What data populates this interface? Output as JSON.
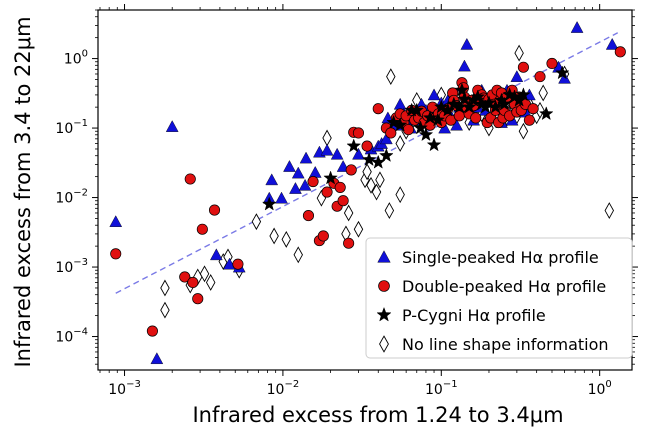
{
  "chart_data": {
    "type": "scatter",
    "xscale": "log",
    "yscale": "log",
    "xlim": [
      0.00068,
      1.6
    ],
    "ylim": [
      3.3e-05,
      5.0
    ],
    "xlabel": "Infrared excess from 1.24 to 3.4μm",
    "ylabel": "Infrared excess from 3.4 to 22μm",
    "x_ticks": [
      {
        "value": 0.001,
        "base": "10",
        "exp": "−3"
      },
      {
        "value": 0.01,
        "base": "10",
        "exp": "−2"
      },
      {
        "value": 0.1,
        "base": "10",
        "exp": "−1"
      },
      {
        "value": 1,
        "base": "10",
        "exp": "0"
      }
    ],
    "y_ticks": [
      {
        "value": 0.0001,
        "base": "10",
        "exp": "−4"
      },
      {
        "value": 0.001,
        "base": "10",
        "exp": "−3"
      },
      {
        "value": 0.01,
        "base": "10",
        "exp": "−2"
      },
      {
        "value": 0.1,
        "base": "10",
        "exp": "−1"
      },
      {
        "value": 1,
        "base": "10",
        "exp": "0"
      }
    ],
    "trend_line": {
      "x": [
        0.00088,
        1.3
      ],
      "y": [
        0.00042,
        2.35
      ],
      "color": "#7a7ae6",
      "style": "dashed"
    },
    "legend_position": "lower right",
    "series": [
      {
        "name": "Single-peaked Hα profile",
        "marker": "triangle",
        "color": "#1010d8",
        "points": [
          [
            0.00088,
            0.0045
          ],
          [
            0.0016,
            4.8e-05
          ],
          [
            0.002,
            0.105
          ],
          [
            0.0038,
            0.0015
          ],
          [
            0.0046,
            0.0011
          ],
          [
            0.0053,
            0.001
          ],
          [
            0.0082,
            0.0098
          ],
          [
            0.0085,
            0.018
          ],
          [
            0.0098,
            0.0098
          ],
          [
            0.011,
            0.028
          ],
          [
            0.012,
            0.0135
          ],
          [
            0.0125,
            0.0225
          ],
          [
            0.0138,
            0.015
          ],
          [
            0.014,
            0.037
          ],
          [
            0.016,
            0.023
          ],
          [
            0.017,
            0.045
          ],
          [
            0.019,
            0.048
          ],
          [
            0.022,
            0.042
          ],
          [
            0.024,
            0.028
          ],
          [
            0.03,
            0.042
          ],
          [
            0.036,
            0.05
          ],
          [
            0.04,
            0.055
          ],
          [
            0.042,
            0.06
          ],
          [
            0.045,
            0.07
          ],
          [
            0.046,
            0.14
          ],
          [
            0.05,
            0.12
          ],
          [
            0.052,
            0.11
          ],
          [
            0.055,
            0.22
          ],
          [
            0.058,
            0.16
          ],
          [
            0.06,
            0.13
          ],
          [
            0.064,
            0.1
          ],
          [
            0.07,
            0.13
          ],
          [
            0.075,
            0.22
          ],
          [
            0.08,
            0.18
          ],
          [
            0.085,
            0.16
          ],
          [
            0.09,
            0.3
          ],
          [
            0.095,
            0.14
          ],
          [
            0.1,
            0.23
          ],
          [
            0.105,
            0.1
          ],
          [
            0.11,
            0.25
          ],
          [
            0.115,
            0.15
          ],
          [
            0.12,
            0.28
          ],
          [
            0.125,
            0.11
          ],
          [
            0.13,
            0.2
          ],
          [
            0.135,
            0.4
          ],
          [
            0.14,
            0.78
          ],
          [
            0.145,
            1.6
          ],
          [
            0.15,
            0.25
          ],
          [
            0.16,
            0.13
          ],
          [
            0.17,
            0.2
          ],
          [
            0.18,
            0.35
          ],
          [
            0.19,
            0.18
          ],
          [
            0.2,
            0.25
          ],
          [
            0.21,
            0.15
          ],
          [
            0.22,
            0.28
          ],
          [
            0.24,
            0.12
          ],
          [
            0.25,
            0.2
          ],
          [
            0.26,
            0.35
          ],
          [
            0.28,
            0.13
          ],
          [
            0.3,
            0.55
          ],
          [
            0.32,
            0.25
          ],
          [
            0.34,
            0.17
          ],
          [
            0.36,
            0.3
          ],
          [
            0.55,
            0.75
          ],
          [
            0.6,
            0.52
          ],
          [
            0.72,
            2.8
          ],
          [
            1.2,
            1.6
          ]
        ]
      },
      {
        "name": "Double-peaked Hα profile",
        "marker": "circle",
        "color": "#e01010",
        "points": [
          [
            0.00088,
            0.00155
          ],
          [
            0.0015,
            0.00012
          ],
          [
            0.0024,
            0.00072
          ],
          [
            0.0026,
            0.0185
          ],
          [
            0.0027,
            0.0006
          ],
          [
            0.0029,
            0.00035
          ],
          [
            0.0031,
            0.0035
          ],
          [
            0.0037,
            0.0066
          ],
          [
            0.0052,
            0.0011
          ],
          [
            0.0145,
            0.0055
          ],
          [
            0.0155,
            0.017
          ],
          [
            0.017,
            0.0024
          ],
          [
            0.018,
            0.0028
          ],
          [
            0.019,
            0.012
          ],
          [
            0.021,
            0.016
          ],
          [
            0.022,
            0.0075
          ],
          [
            0.023,
            0.014
          ],
          [
            0.024,
            0.009
          ],
          [
            0.026,
            0.0022
          ],
          [
            0.027,
            0.025
          ],
          [
            0.028,
            0.087
          ],
          [
            0.03,
            0.085
          ],
          [
            0.034,
            0.055
          ],
          [
            0.04,
            0.19
          ],
          [
            0.045,
            0.1
          ],
          [
            0.048,
            0.085
          ],
          [
            0.052,
            0.14
          ],
          [
            0.055,
            0.16
          ],
          [
            0.058,
            0.12
          ],
          [
            0.06,
            0.15
          ],
          [
            0.062,
            0.095
          ],
          [
            0.065,
            0.18
          ],
          [
            0.068,
            0.13
          ],
          [
            0.072,
            0.14
          ],
          [
            0.075,
            0.175
          ],
          [
            0.078,
            0.12
          ],
          [
            0.082,
            0.15
          ],
          [
            0.085,
            0.11
          ],
          [
            0.088,
            0.2
          ],
          [
            0.092,
            0.14
          ],
          [
            0.096,
            0.16
          ],
          [
            0.1,
            0.12
          ],
          [
            0.105,
            0.15
          ],
          [
            0.11,
            0.19
          ],
          [
            0.115,
            0.13
          ],
          [
            0.118,
            0.32
          ],
          [
            0.12,
            0.25
          ],
          [
            0.125,
            0.21
          ],
          [
            0.13,
            0.15
          ],
          [
            0.135,
            0.45
          ],
          [
            0.138,
            0.38
          ],
          [
            0.14,
            0.28
          ],
          [
            0.145,
            0.2
          ],
          [
            0.15,
            0.16
          ],
          [
            0.155,
            0.25
          ],
          [
            0.16,
            0.21
          ],
          [
            0.165,
            0.14
          ],
          [
            0.17,
            0.35
          ],
          [
            0.175,
            0.25
          ],
          [
            0.18,
            0.3
          ],
          [
            0.185,
            0.27
          ],
          [
            0.19,
            0.23
          ],
          [
            0.195,
            0.12
          ],
          [
            0.2,
            0.26
          ],
          [
            0.205,
            0.14
          ],
          [
            0.21,
            0.3
          ],
          [
            0.215,
            0.22
          ],
          [
            0.22,
            0.18
          ],
          [
            0.225,
            0.35
          ],
          [
            0.23,
            0.12
          ],
          [
            0.235,
            0.25
          ],
          [
            0.24,
            0.32
          ],
          [
            0.245,
            0.14
          ],
          [
            0.25,
            0.18
          ],
          [
            0.26,
            0.28
          ],
          [
            0.27,
            0.15
          ],
          [
            0.28,
            0.35
          ],
          [
            0.29,
            0.22
          ],
          [
            0.3,
            0.17
          ],
          [
            0.31,
            0.28
          ],
          [
            0.32,
            0.18
          ],
          [
            0.33,
            0.75
          ],
          [
            0.34,
            0.22
          ],
          [
            0.36,
            0.13
          ],
          [
            0.38,
            0.19
          ],
          [
            0.42,
            0.55
          ],
          [
            1.35,
            1.25
          ],
          [
            0.5,
            0.85
          ]
        ]
      },
      {
        "name": "P-Cygni Hα profile",
        "marker": "star",
        "color": "#000000",
        "points": [
          [
            0.0082,
            0.008
          ],
          [
            0.02,
            0.019
          ],
          [
            0.028,
            0.055
          ],
          [
            0.035,
            0.035
          ],
          [
            0.04,
            0.032
          ],
          [
            0.045,
            0.04
          ],
          [
            0.05,
            0.12
          ],
          [
            0.055,
            0.11
          ],
          [
            0.065,
            0.18
          ],
          [
            0.07,
            0.18
          ],
          [
            0.074,
            0.1
          ],
          [
            0.08,
            0.08
          ],
          [
            0.085,
            0.14
          ],
          [
            0.09,
            0.057
          ],
          [
            0.095,
            0.13
          ],
          [
            0.1,
            0.2
          ],
          [
            0.11,
            0.18
          ],
          [
            0.12,
            0.22
          ],
          [
            0.13,
            0.2
          ],
          [
            0.135,
            0.35
          ],
          [
            0.14,
            0.26
          ],
          [
            0.15,
            0.2
          ],
          [
            0.16,
            0.25
          ],
          [
            0.17,
            0.28
          ],
          [
            0.18,
            0.22
          ],
          [
            0.19,
            0.2
          ],
          [
            0.2,
            0.23
          ],
          [
            0.22,
            0.2
          ],
          [
            0.24,
            0.25
          ],
          [
            0.25,
            0.22
          ],
          [
            0.27,
            0.3
          ],
          [
            0.29,
            0.28
          ],
          [
            0.31,
            0.25
          ],
          [
            0.33,
            0.3
          ],
          [
            0.46,
            0.16
          ],
          [
            0.58,
            0.62
          ]
        ]
      },
      {
        "name": "No line shape information",
        "marker": "diamond",
        "color": "#ffffff",
        "points": [
          [
            0.0018,
            0.0005
          ],
          [
            0.0018,
            0.00024
          ],
          [
            0.0026,
            0.00055
          ],
          [
            0.0029,
            0.00072
          ],
          [
            0.0032,
            0.0008
          ],
          [
            0.0035,
            0.0006
          ],
          [
            0.0042,
            0.0012
          ],
          [
            0.0045,
            0.0014
          ],
          [
            0.0053,
            0.0009
          ],
          [
            0.0068,
            0.0045
          ],
          [
            0.0088,
            0.0028
          ],
          [
            0.0105,
            0.0025
          ],
          [
            0.0125,
            0.0015
          ],
          [
            0.0175,
            0.0098
          ],
          [
            0.019,
            0.072
          ],
          [
            0.025,
            0.003
          ],
          [
            0.026,
            0.006
          ],
          [
            0.03,
            0.0035
          ],
          [
            0.033,
            0.018
          ],
          [
            0.034,
            0.0235
          ],
          [
            0.036,
            0.015
          ],
          [
            0.039,
            0.012
          ],
          [
            0.041,
            0.018
          ],
          [
            0.047,
            0.0065
          ],
          [
            0.048,
            0.55
          ],
          [
            0.055,
            0.011
          ],
          [
            0.055,
            0.06
          ],
          [
            0.06,
            0.09
          ],
          [
            0.065,
            0.12
          ],
          [
            0.07,
            0.25
          ],
          [
            0.08,
            0.12
          ],
          [
            0.09,
            0.15
          ],
          [
            0.1,
            0.3
          ],
          [
            0.11,
            0.22
          ],
          [
            0.12,
            0.18
          ],
          [
            0.15,
            0.12
          ],
          [
            0.18,
            0.16
          ],
          [
            0.2,
            0.1
          ],
          [
            0.22,
            0.15
          ],
          [
            0.24,
            0.19
          ],
          [
            0.26,
            0.14
          ],
          [
            0.28,
            0.22
          ],
          [
            0.3,
            0.15
          ],
          [
            0.31,
            1.2
          ],
          [
            0.33,
            0.09
          ],
          [
            0.36,
            0.22
          ],
          [
            0.4,
            0.15
          ],
          [
            0.42,
            0.18
          ],
          [
            0.44,
            0.32
          ],
          [
            0.6,
            0.6
          ],
          [
            1.15,
            0.0065
          ]
        ]
      }
    ]
  }
}
